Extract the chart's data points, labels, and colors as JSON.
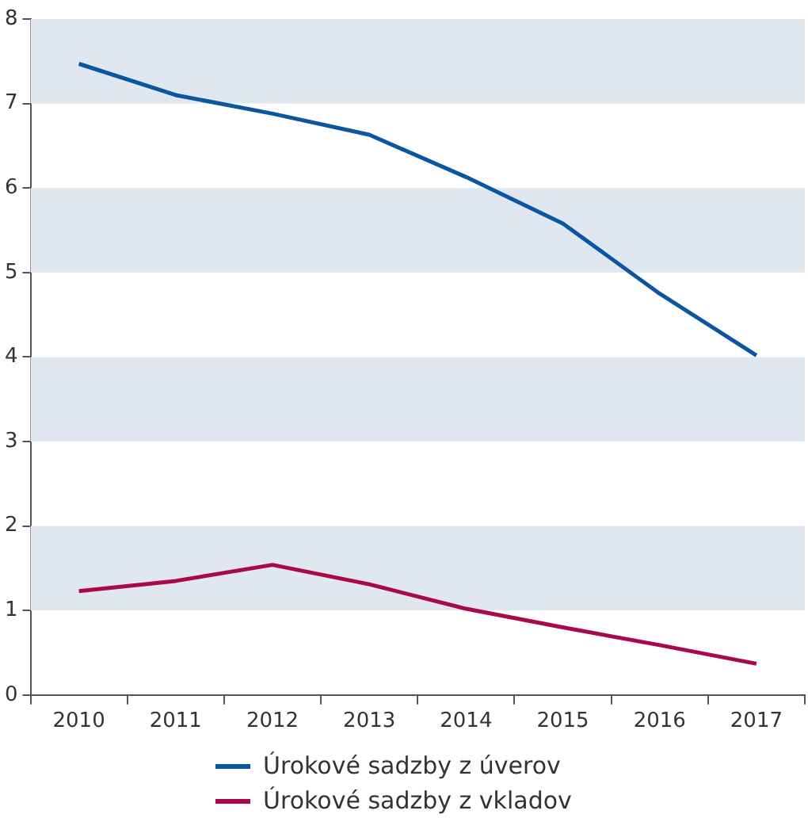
{
  "chart_data": {
    "type": "line",
    "categories": [
      "2010",
      "2011",
      "2012",
      "2013",
      "2014",
      "2015",
      "2016",
      "2017"
    ],
    "series": [
      {
        "name": "Úrokové sadzby z úverov",
        "color": "#0a56a0",
        "values": [
          7.47,
          7.1,
          6.88,
          6.63,
          6.13,
          5.58,
          4.75,
          4.02
        ]
      },
      {
        "name": "Úrokové sadzby z vkladov",
        "color": "#a8084c",
        "values": [
          1.23,
          1.35,
          1.54,
          1.31,
          1.02,
          0.8,
          0.59,
          0.37
        ]
      }
    ],
    "ylim": [
      0,
      8
    ],
    "yticks": [
      0,
      1,
      2,
      3,
      4,
      5,
      6,
      7,
      8
    ],
    "grid": false,
    "legend": "bottom",
    "marker": "none",
    "line_style": "solid",
    "bands": [
      {
        "axis": "y",
        "from": 1,
        "to": 2,
        "color": "#e1e7f1"
      },
      {
        "axis": "y",
        "from": 3,
        "to": 4,
        "color": "#e1e7f1"
      },
      {
        "axis": "y",
        "from": 5,
        "to": 6,
        "color": "#e1e7f1"
      },
      {
        "axis": "y",
        "from": 7,
        "to": 8,
        "color": "#e1e7f1"
      }
    ]
  }
}
